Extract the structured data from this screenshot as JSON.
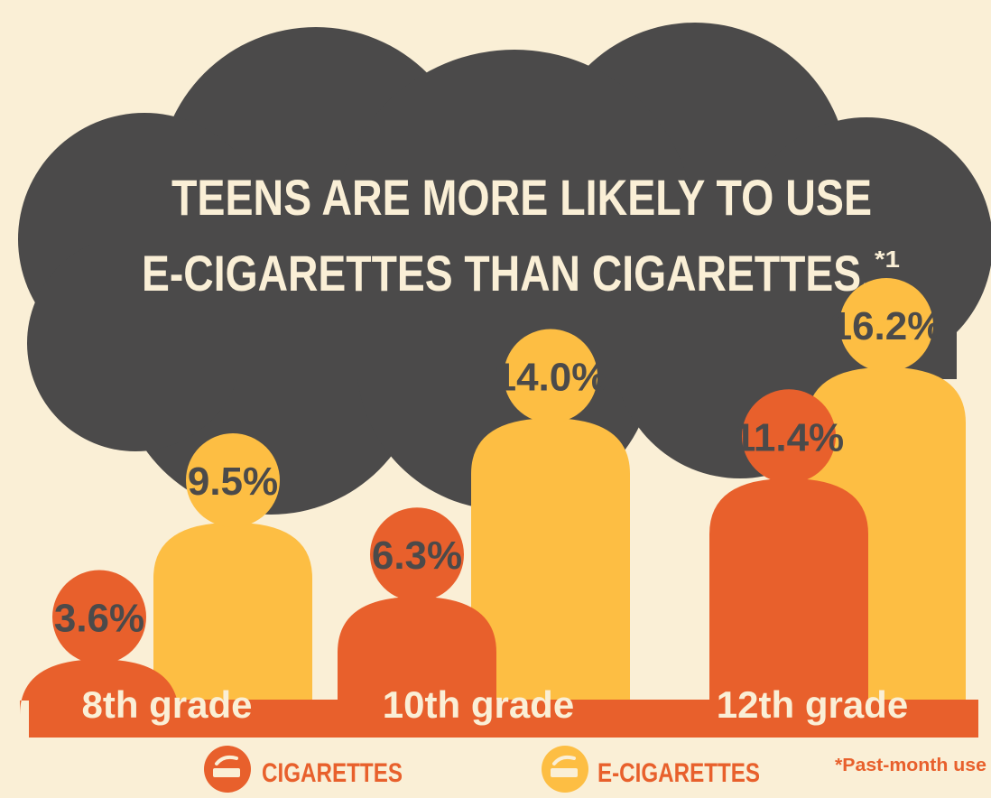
{
  "colors": {
    "background": "#faefd6",
    "cloud": "#4b4a4a",
    "cigarettes": "#e8602c",
    "e_cigarettes": "#fdbe43",
    "label_text": "#4b4a4a",
    "light_text": "#faefd6"
  },
  "icons": {
    "cigarettes": "cigarette-icon",
    "e_cigarettes": "e-cigarette-icon"
  },
  "chart_data": {
    "type": "bar",
    "title_line1": "TEENS ARE MORE LIKELY TO USE",
    "title_line2": "E-CIGARETTES THAN CIGARETTES.",
    "title_sup": "*1",
    "categories": [
      "8th grade",
      "10th grade",
      "12th grade"
    ],
    "series": [
      {
        "name": "CIGARETTES",
        "values": [
          3.6,
          6.3,
          11.4
        ],
        "labels": [
          "3.6%",
          "6.3%",
          "11.4%"
        ]
      },
      {
        "name": "E-CIGARETTES",
        "values": [
          9.5,
          14.0,
          16.2
        ],
        "labels": [
          "9.5%",
          "14.0%",
          "16.2%"
        ]
      }
    ],
    "unit": "%",
    "ylim": [
      0,
      16.2
    ],
    "legend_position": "bottom",
    "grid": false,
    "footnote": "*Past-month use"
  }
}
